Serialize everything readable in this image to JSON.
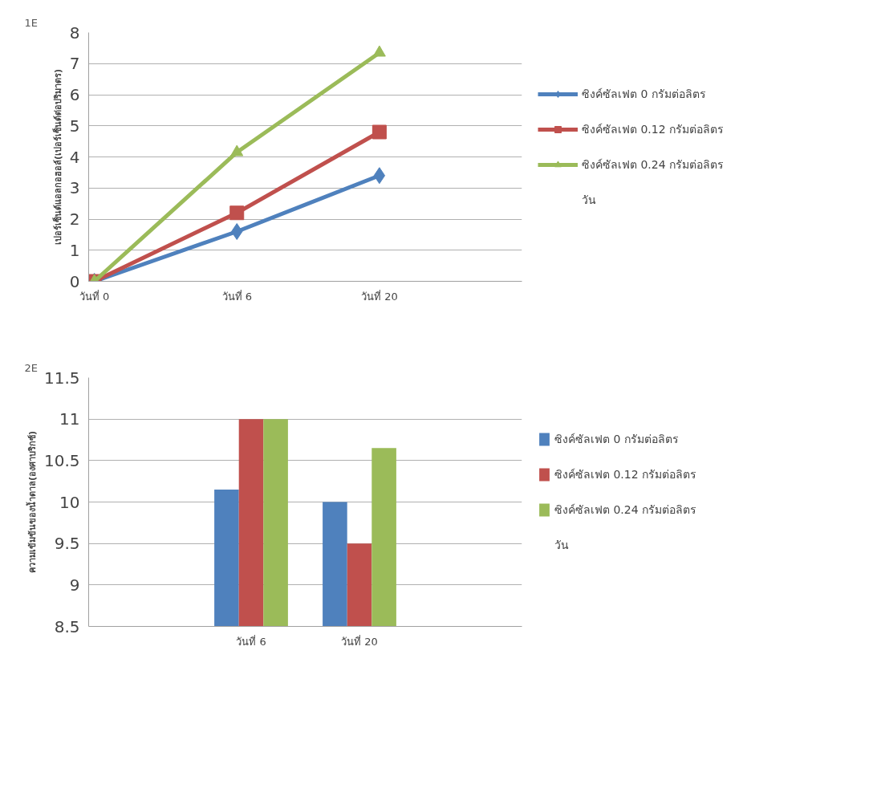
{
  "chart_data": [
    {
      "type": "line",
      "title": "1E",
      "xlabel": "วัน",
      "ylabel": "เปอร์เซ็นต์แอลกอฮอล์(เปอร์เซ็นต์ต่อปริมาตร)",
      "categories": [
        "วันที่ 0",
        "วันที่ 6",
        "วันที่ 20",
        null
      ],
      "series": [
        {
          "name": "ซิงค์ซัลเฟต 0 กรัมต่อลิตร",
          "color": "#4f81bd",
          "marker": "diamond",
          "values": [
            0,
            1.6,
            3.4,
            null
          ]
        },
        {
          "name": "ซิงค์ซัลเฟต 0.12 กรัมต่อลิตร",
          "color": "#c0504d",
          "marker": "square",
          "values": [
            0,
            2.2,
            4.8,
            null
          ]
        },
        {
          "name": "ซิงค์ซัลเฟต 0.24 กรัมต่อลิตร",
          "color": "#9bbb59",
          "marker": "triangle",
          "values": [
            0,
            4.15,
            7.35,
            null
          ]
        }
      ],
      "ylim": [
        0,
        8
      ],
      "yticks": [
        0,
        1,
        2,
        3,
        4,
        5,
        6,
        7,
        8
      ],
      "grid": "y",
      "legend": "right"
    },
    {
      "type": "bar",
      "title": "2E",
      "xlabel": "วัน",
      "ylabel": "ความเข้มข้นของน้ำตาล(องศาบริกซ์)",
      "categories": [
        null,
        "วันที่ 6",
        "วันที่ 20",
        null
      ],
      "series": [
        {
          "name": "ซิงค์ซัลเฟต 0 กรัมต่อลิตร",
          "color": "#4f81bd",
          "values": [
            null,
            10.15,
            10.0,
            null
          ]
        },
        {
          "name": "ซิงค์ซัลเฟต 0.12 กรัมต่อลิตร",
          "color": "#c0504d",
          "values": [
            null,
            11.0,
            9.5,
            null
          ]
        },
        {
          "name": "ซิงค์ซัลเฟต 0.24 กรัมต่อลิตร",
          "color": "#9bbb59",
          "values": [
            null,
            11.0,
            10.65,
            null
          ]
        }
      ],
      "ylim": [
        8.5,
        11.5
      ],
      "yticks": [
        8.5,
        9,
        9.5,
        10,
        10.5,
        11,
        11.5
      ],
      "grid": "y",
      "legend": "right"
    }
  ]
}
